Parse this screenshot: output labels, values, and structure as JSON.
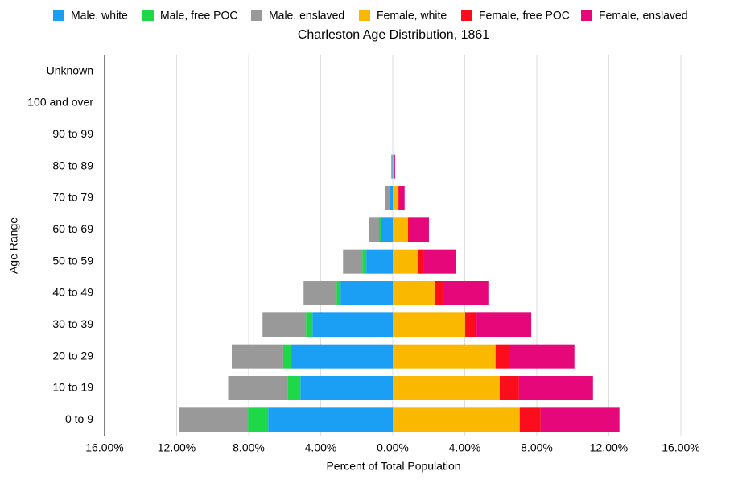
{
  "chart_data": {
    "type": "bar",
    "orientation": "horizontal",
    "stacked": true,
    "title": "Charleston Age Distribution, 1861",
    "x_label": "Percent of Total Population",
    "y_label": "Age Range",
    "categories": [
      "0 to 9",
      "10 to 19",
      "20 to 29",
      "30 to 39",
      "40 to 49",
      "50 to 59",
      "60 to 69",
      "70 to 79",
      "80 to 89",
      "90 to 99",
      "100 and over",
      "Unknown"
    ],
    "xlim": [
      -16,
      16
    ],
    "xticks": [
      {
        "value": -16,
        "label": "16.00%"
      },
      {
        "value": -12,
        "label": "12.00%"
      },
      {
        "value": -8,
        "label": "8.00%"
      },
      {
        "value": -4,
        "label": "4.00%"
      },
      {
        "value": 0,
        "label": "0.00%"
      },
      {
        "value": 4,
        "label": "4.00%"
      },
      {
        "value": 8,
        "label": "8.00%"
      },
      {
        "value": 12,
        "label": "12.00%"
      },
      {
        "value": 16,
        "label": "16.00%"
      }
    ],
    "grid": true,
    "legend": "top",
    "series": [
      {
        "name": "Male, white",
        "color": "#1a9ff5",
        "values": [
          -6.92,
          -5.13,
          -5.63,
          -4.46,
          -2.9,
          -1.47,
          -0.67,
          -0.18,
          -0.02,
          0,
          0,
          0
        ]
      },
      {
        "name": "Male, free POC",
        "color": "#1ed84a",
        "values": [
          -1.12,
          -0.71,
          -0.45,
          -0.36,
          -0.22,
          -0.22,
          -0.09,
          -0.04,
          -0.01,
          0,
          0,
          0
        ]
      },
      {
        "name": "Male, enslaved",
        "color": "#999999",
        "values": [
          -3.84,
          -3.3,
          -2.86,
          -2.41,
          -1.83,
          -1.07,
          -0.58,
          -0.22,
          -0.05,
          0,
          0,
          0
        ]
      },
      {
        "name": "Female, white",
        "color": "#fbb800",
        "values": [
          7.05,
          5.94,
          5.71,
          4.02,
          2.32,
          1.38,
          0.85,
          0.31,
          0.04,
          0,
          0,
          0
        ]
      },
      {
        "name": "Female, free POC",
        "color": "#fc0d1b",
        "values": [
          1.16,
          1.07,
          0.76,
          0.63,
          0.45,
          0.36,
          0.09,
          0.04,
          0.04,
          0,
          0,
          0
        ]
      },
      {
        "name": "Female, enslaved",
        "color": "#e6087a",
        "values": [
          4.38,
          4.11,
          3.62,
          3.04,
          2.54,
          1.79,
          1.07,
          0.31,
          0.05,
          0,
          0,
          0
        ]
      }
    ]
  }
}
